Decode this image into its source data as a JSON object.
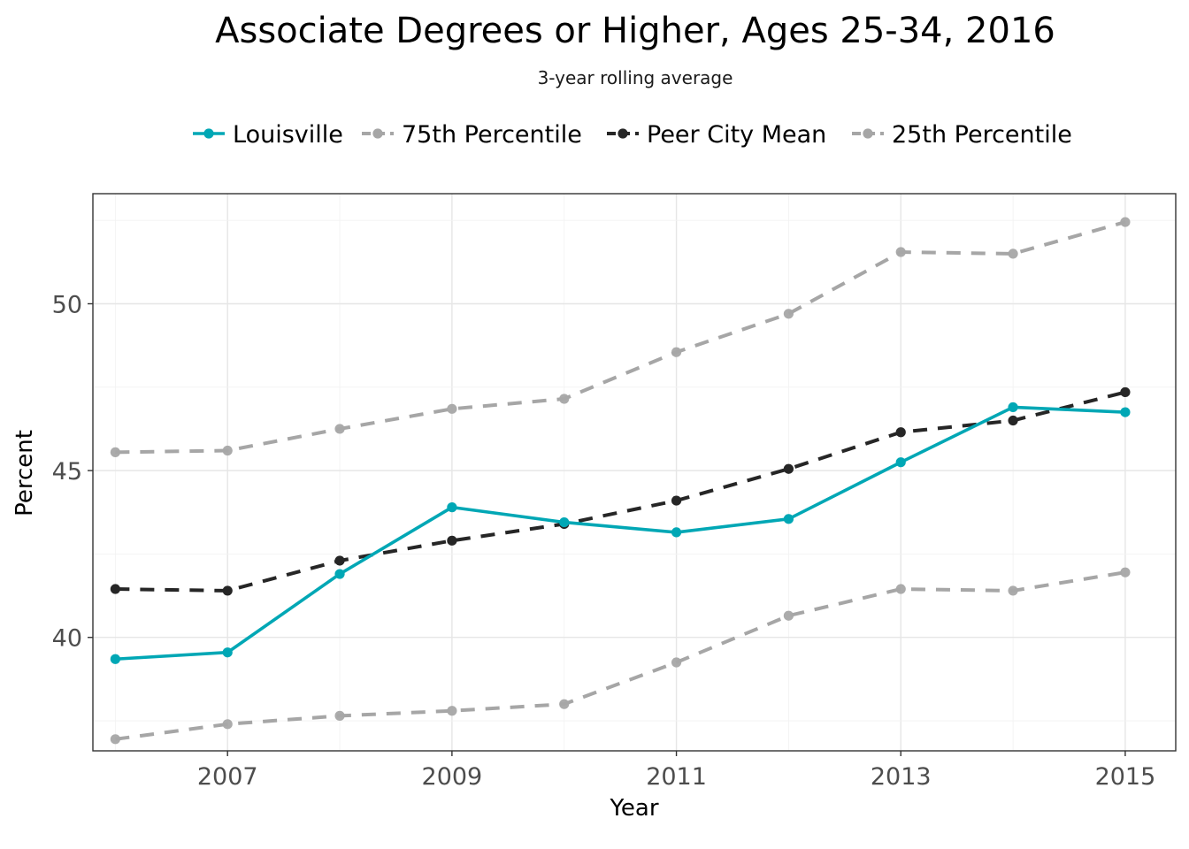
{
  "chart_data": {
    "type": "line",
    "title": "Associate Degrees or Higher, Ages 25-34, 2016",
    "subtitle": "3-year rolling average",
    "xlabel": "Year",
    "ylabel": "Percent",
    "x": [
      2006,
      2007,
      2008,
      2009,
      2010,
      2011,
      2012,
      2013,
      2014,
      2015
    ],
    "xlim": [
      2005.8,
      2015.45
    ],
    "ylim": [
      36.6,
      53.3
    ],
    "x_ticks": [
      2007,
      2009,
      2011,
      2013,
      2015
    ],
    "y_ticks": [
      40,
      45,
      50
    ],
    "grid": true,
    "legend_position": "top",
    "series": [
      {
        "name": "Louisville",
        "color": "#00a7b5",
        "style": "solid",
        "values": [
          39.35,
          39.55,
          41.9,
          43.9,
          43.45,
          43.15,
          43.55,
          45.25,
          46.9,
          46.75
        ]
      },
      {
        "name": "75th Percentile",
        "color": "#a6a6a6",
        "style": "dashed",
        "values": [
          45.55,
          45.6,
          46.25,
          46.85,
          47.15,
          48.55,
          49.7,
          51.55,
          51.5,
          52.45
        ]
      },
      {
        "name": "Peer City Mean",
        "color": "#262626",
        "style": "dashed",
        "values": [
          41.45,
          41.4,
          42.3,
          42.9,
          43.4,
          44.1,
          45.05,
          46.15,
          46.5,
          47.35
        ]
      },
      {
        "name": "25th Percentile",
        "color": "#a6a6a6",
        "style": "dashed",
        "values": [
          36.95,
          37.4,
          37.65,
          37.8,
          38.0,
          39.25,
          40.65,
          41.45,
          41.4,
          41.95
        ]
      }
    ]
  }
}
